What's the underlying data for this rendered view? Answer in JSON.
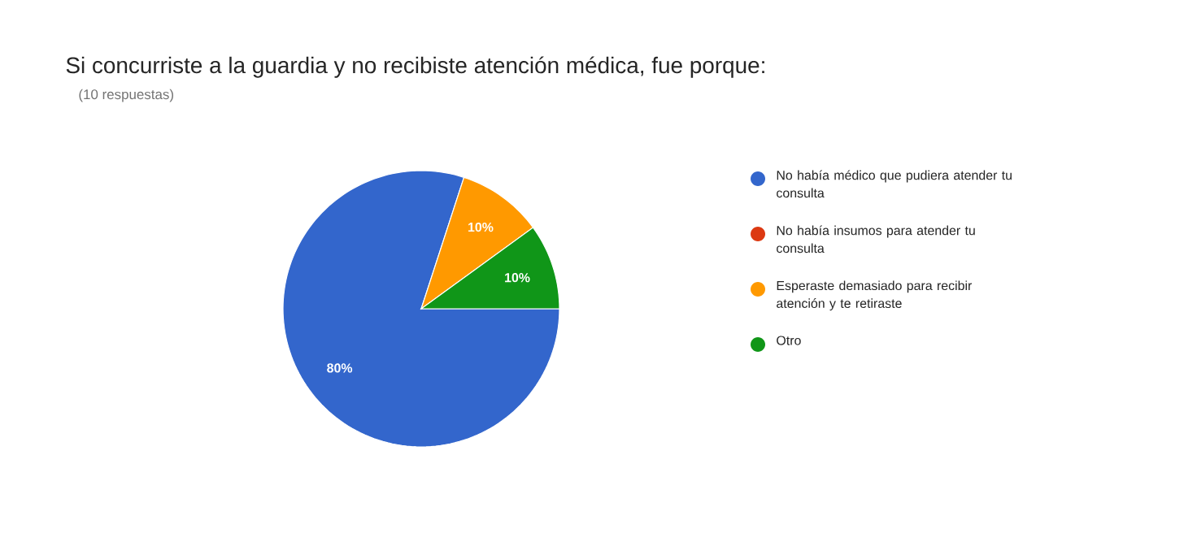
{
  "chart_data": {
    "type": "pie",
    "title": "Si concurriste a la guardia y no recibiste atención médica, fue porque:",
    "subtitle": "(10 respuestas)",
    "categories": [
      "No había médico que pudiera atender tu consulta",
      "No había insumos para atender tu consulta",
      "Esperaste demasiado para recibir atención y te retiraste",
      "Otro"
    ],
    "values": [
      80,
      0,
      10,
      10
    ],
    "colors": [
      "#3366cc",
      "#dc3912",
      "#ff9900",
      "#109618"
    ],
    "value_labels": [
      "80%",
      null,
      "10%",
      "10%"
    ],
    "legend": "right"
  }
}
